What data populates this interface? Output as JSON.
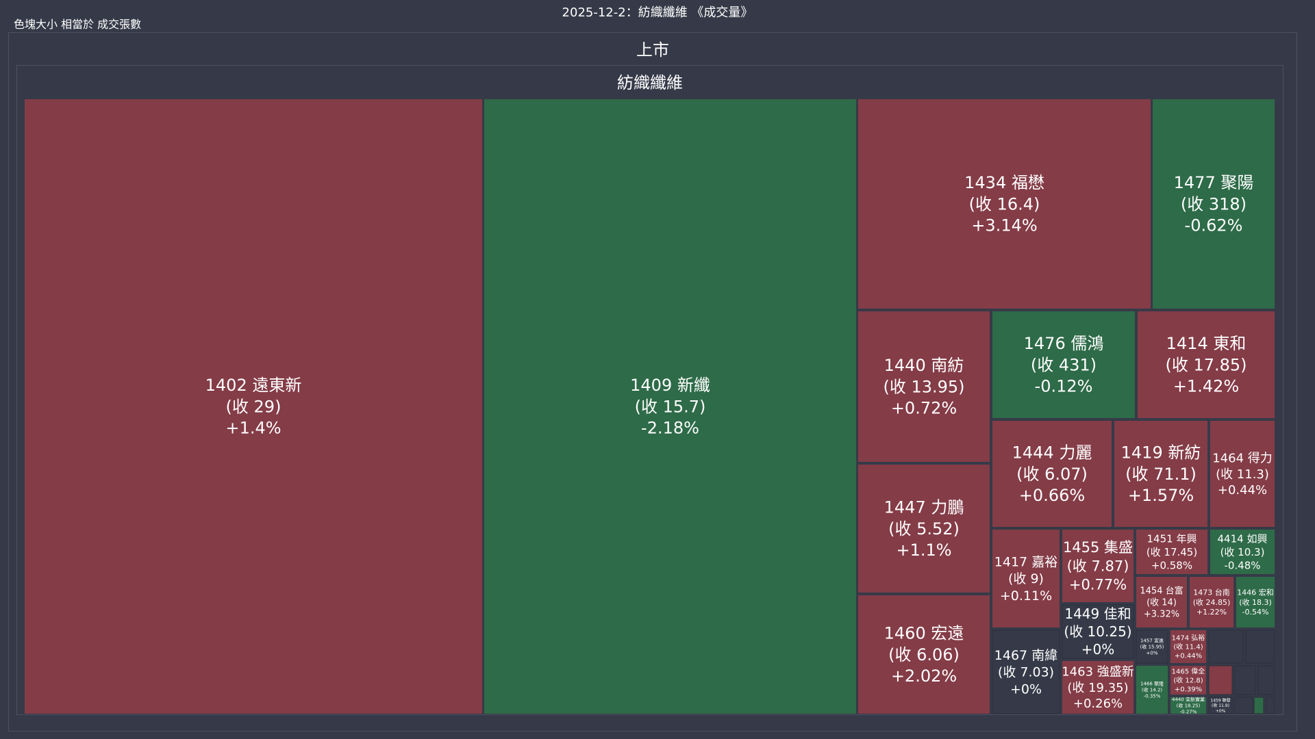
{
  "header": {
    "title": "2025-12-2：紡織纖維 《成交量》",
    "legend": "色塊大小 相當於 成交張數"
  },
  "colors": {
    "up": "#843c47",
    "down": "#2e6b48",
    "flat": "#363a48",
    "background": "#363a48",
    "frame": "#4c5060",
    "text": "#ffffff"
  },
  "chart_data": {
    "type": "treemap",
    "title": "2025-12-2：紡織纖維 《成交量》",
    "size_metric": "色塊大小 相當於 成交張數",
    "market": "上市",
    "sector": "紡織纖維",
    "items": [
      {
        "code": "1402",
        "name": "遠東新",
        "close_label": "(收 29)",
        "change_label": "+1.4%",
        "change": 1.4
      },
      {
        "code": "1409",
        "name": "新纖",
        "close_label": "(收 15.7)",
        "change_label": "-2.18%",
        "change": -2.18
      },
      {
        "code": "1434",
        "name": "福懋",
        "close_label": "(收 16.4)",
        "change_label": "+3.14%",
        "change": 3.14
      },
      {
        "code": "1477",
        "name": "聚陽",
        "close_label": "(收 318)",
        "change_label": "-0.62%",
        "change": -0.62
      },
      {
        "code": "1440",
        "name": "南紡",
        "close_label": "(收 13.95)",
        "change_label": "+0.72%",
        "change": 0.72
      },
      {
        "code": "1476",
        "name": "儒鴻",
        "close_label": "(收 431)",
        "change_label": "-0.12%",
        "change": -0.12
      },
      {
        "code": "1414",
        "name": "東和",
        "close_label": "(收 17.85)",
        "change_label": "+1.42%",
        "change": 1.42
      },
      {
        "code": "1444",
        "name": "力麗",
        "close_label": "(收 6.07)",
        "change_label": "+0.66%",
        "change": 0.66
      },
      {
        "code": "1419",
        "name": "新紡",
        "close_label": "(收 71.1)",
        "change_label": "+1.57%",
        "change": 1.57
      },
      {
        "code": "1464",
        "name": "得力",
        "close_label": "(收 11.3)",
        "change_label": "+0.44%",
        "change": 0.44
      },
      {
        "code": "1447",
        "name": "力鵬",
        "close_label": "(收 5.52)",
        "change_label": "+1.1%",
        "change": 1.1
      },
      {
        "code": "1417",
        "name": "嘉裕",
        "close_label": "(收 9)",
        "change_label": "+0.11%",
        "change": 0.11
      },
      {
        "code": "1455",
        "name": "集盛",
        "close_label": "(收 7.87)",
        "change_label": "+0.77%",
        "change": 0.77
      },
      {
        "code": "1451",
        "name": "年興",
        "close_label": "(收 17.45)",
        "change_label": "+0.58%",
        "change": 0.58
      },
      {
        "code": "4414",
        "name": "如興",
        "close_label": "(收 10.3)",
        "change_label": "-0.48%",
        "change": -0.48
      },
      {
        "code": "1454",
        "name": "台富",
        "close_label": "(收 14)",
        "change_label": "+3.32%",
        "change": 3.32
      },
      {
        "code": "1473",
        "name": "台南",
        "close_label": "(收 24.85)",
        "change_label": "+1.22%",
        "change": 1.22
      },
      {
        "code": "1446",
        "name": "宏和",
        "close_label": "(收 18.3)",
        "change_label": "-0.54%",
        "change": -0.54
      },
      {
        "code": "1449",
        "name": "佳和",
        "close_label": "(收 10.25)",
        "change_label": "+0%",
        "change": 0
      },
      {
        "code": "1460",
        "name": "宏遠",
        "close_label": "(收 6.06)",
        "change_label": "+2.02%",
        "change": 2.02
      },
      {
        "code": "1467",
        "name": "南緯",
        "close_label": "(收 7.03)",
        "change_label": "+0%",
        "change": 0
      },
      {
        "code": "1463",
        "name": "強盛新",
        "close_label": "(收 19.35)",
        "change_label": "+0.26%",
        "change": 0.26
      },
      {
        "code": "1457",
        "name": "宜進",
        "close_label": "(收 15.95)",
        "change_label": "+0%",
        "change": 0
      },
      {
        "code": "1474",
        "name": "弘裕",
        "close_label": "(收 11.4)",
        "change_label": "+0.44%",
        "change": 0.44
      },
      {
        "code": "1465",
        "name": "偉全",
        "close_label": "(收 12.8)",
        "change_label": "+0.39%",
        "change": 0.39
      },
      {
        "code": "1466",
        "name": "聚隆",
        "close_label": "(收 14.2)",
        "change_label": "-0.35%",
        "change": -0.35
      },
      {
        "code": "4440",
        "name": "宜新實業",
        "close_label": "(收 18.25)",
        "change_label": "-0.27%",
        "change": -0.27
      },
      {
        "code": "1459",
        "name": "聯發",
        "close_label": "(收 11.9)",
        "change_label": "+0%",
        "change": 0
      }
    ]
  }
}
